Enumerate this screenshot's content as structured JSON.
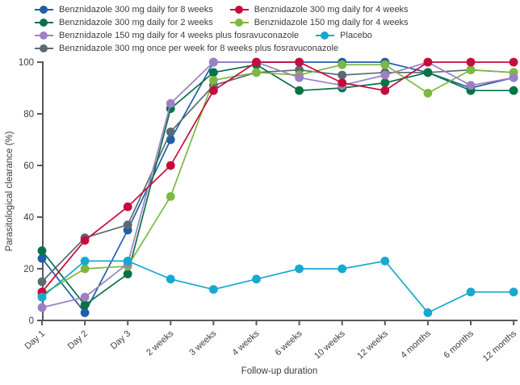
{
  "chart_data": {
    "type": "line",
    "title": "",
    "xlabel": "Follow-up duration",
    "ylabel": "Parasitological clearance (%)",
    "ylim": [
      0,
      100
    ],
    "yticks": [
      0,
      20,
      40,
      60,
      80,
      100
    ],
    "grid": false,
    "legend_position": "top-left, two columns",
    "categories": [
      "Day 1",
      "Day 2",
      "Day 3",
      "2 weeks",
      "3 weeks",
      "4 weeks",
      "6 weeks",
      "10 weeks",
      "12 weeks",
      "4 months",
      "6 months",
      "12 months"
    ],
    "series": [
      {
        "name": "Benznidazole 300 mg daily for 8 weeks",
        "color": "#1e5fa6",
        "values": [
          24,
          3,
          35,
          70,
          100,
          100,
          100,
          100,
          100,
          96,
          90,
          94
        ]
      },
      {
        "name": "Benznidazole 300 mg daily for 4 weeks",
        "color": "#c40d3c",
        "values": [
          11,
          31,
          44,
          60,
          89,
          100,
          100,
          92,
          89,
          100,
          100,
          100
        ]
      },
      {
        "name": "Benznidazole 300 mg daily for 2 weeks",
        "color": "#077245",
        "values": [
          27,
          6,
          18,
          82,
          96,
          99,
          89,
          90,
          92,
          96,
          89,
          89
        ]
      },
      {
        "name": "Benznidazole 150 mg daily for 4 weeks",
        "color": "#7cb842",
        "values": [
          10,
          20,
          21,
          48,
          93,
          96,
          95,
          99,
          99,
          88,
          97,
          96
        ]
      },
      {
        "name": "Benznidazole 150 mg daily for 4 weeks plus fosravuconazole",
        "color": "#9d80c4",
        "values": [
          5,
          9,
          22,
          84,
          100,
          100,
          94,
          91,
          95,
          100,
          91,
          94
        ]
      },
      {
        "name": "Placebo",
        "color": "#17a9d0",
        "values": [
          9,
          23,
          23,
          16,
          12,
          16,
          20,
          20,
          23,
          3,
          11,
          11
        ]
      },
      {
        "name": "Benznidazole 300 mg once per week for 8 weeks plus fosravuconazole",
        "color": "#5a6b74",
        "values": [
          15,
          32,
          37,
          73,
          91,
          96,
          97,
          95,
          96,
          96,
          97,
          96
        ]
      }
    ],
    "legend_rows": [
      [
        0,
        1
      ],
      [
        2,
        3
      ],
      [
        4,
        5
      ],
      [
        6
      ]
    ],
    "draw_order": [
      0,
      6,
      2,
      3,
      4,
      1,
      5
    ]
  },
  "layout_note": {
    "axis_color": "#58595b",
    "text_color": "#3d3d3d"
  }
}
